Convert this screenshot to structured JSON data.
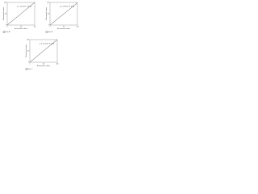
{
  "chart_data": [
    {
      "type": "line",
      "annotation": "y = 1.00x  R² = 0.99",
      "x_label": "Estimated value",
      "y_label": "Measured value",
      "x": [
        0,
        100
      ],
      "series": [
        {
          "name": "Set A",
          "color": "#222222",
          "values": [
            0,
            100
          ]
        }
      ],
      "xlim": [
        0,
        100
      ],
      "ylim": [
        0,
        100
      ],
      "xticks": [
        0,
        50,
        100
      ],
      "yticks": [
        0,
        50,
        100
      ]
    },
    {
      "type": "line",
      "annotation": "y = 0.99x  R² = 0.98",
      "x_label": "Estimated value",
      "y_label": "Measured value",
      "x": [
        0,
        100
      ],
      "series": [
        {
          "name": "Set B",
          "color": "#222222",
          "values": [
            0,
            98
          ]
        }
      ],
      "xlim": [
        0,
        100
      ],
      "ylim": [
        0,
        100
      ],
      "xticks": [
        0,
        50,
        100
      ],
      "yticks": [
        0,
        50,
        100
      ]
    },
    {
      "type": "line",
      "annotation": "y = 1.01x  R² = 0.99",
      "x_label": "Estimated value",
      "y_label": "Measured value",
      "x": [
        0,
        100
      ],
      "series": [
        {
          "name": "Set C",
          "color": "#222222",
          "values": [
            0,
            100
          ]
        }
      ],
      "xlim": [
        0,
        100
      ],
      "ylim": [
        0,
        100
      ],
      "xticks": [
        0,
        50,
        100
      ],
      "yticks": [
        0,
        50,
        100
      ]
    }
  ]
}
